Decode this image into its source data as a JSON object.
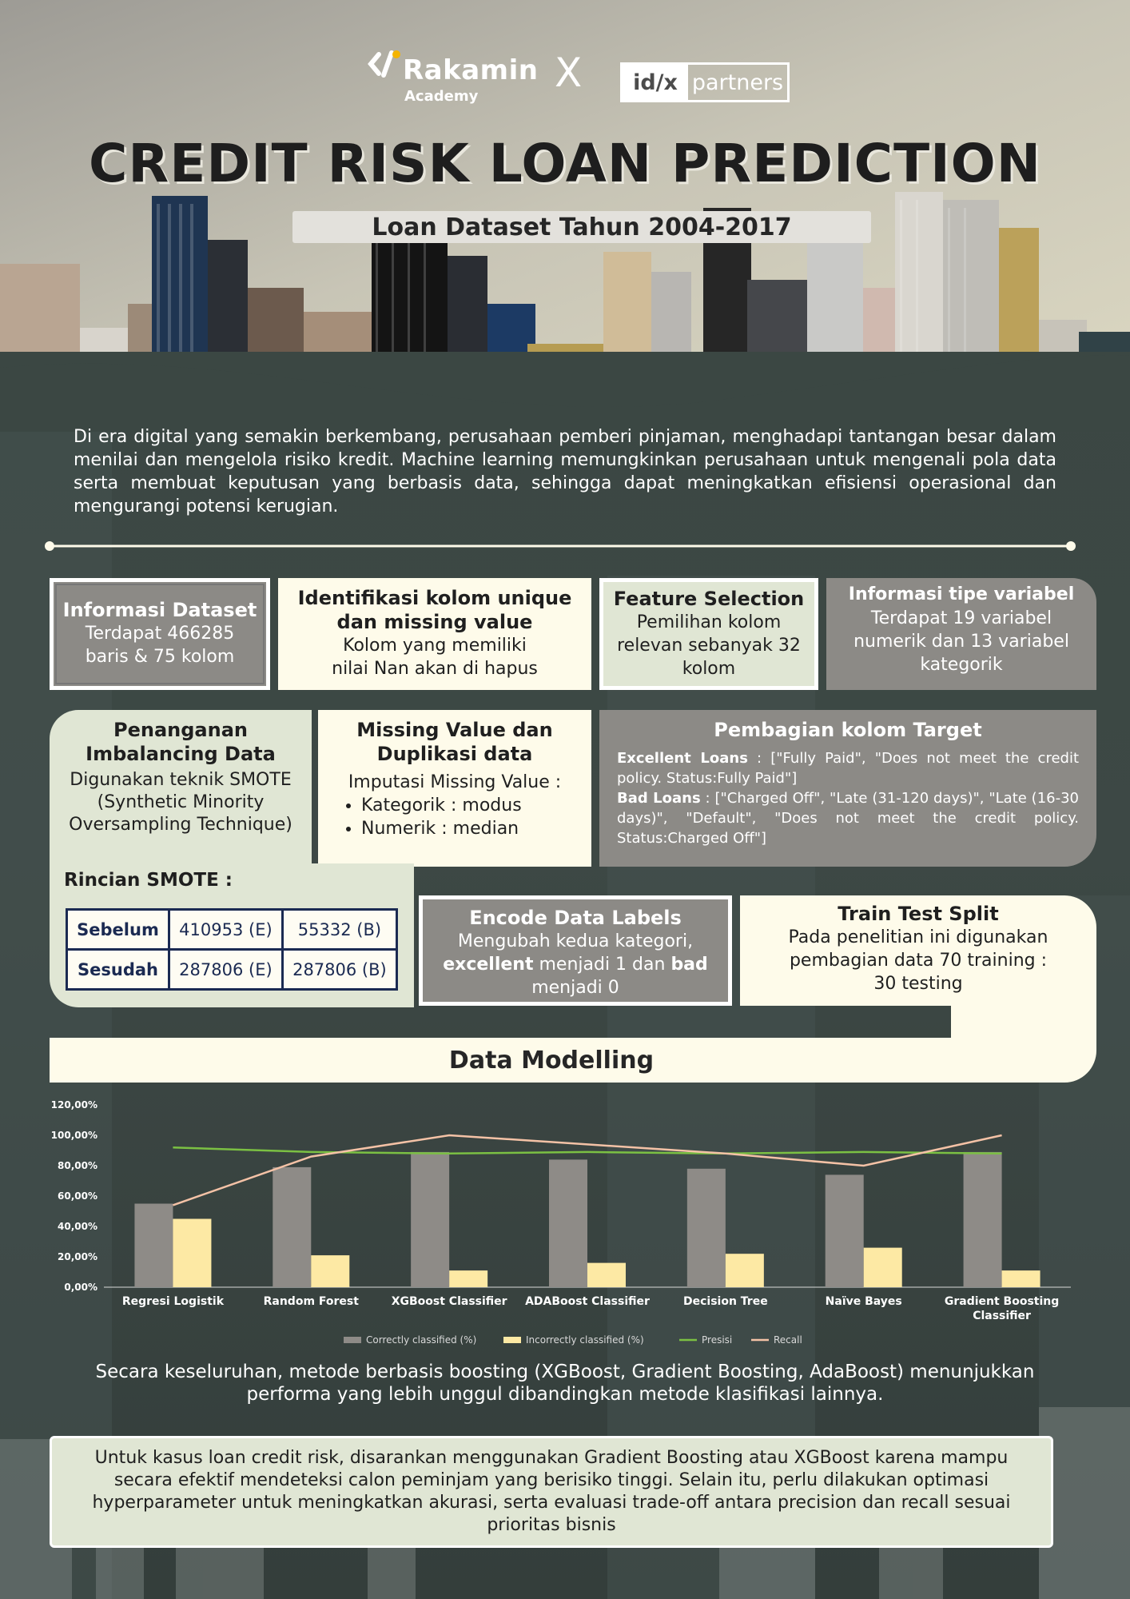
{
  "logos": {
    "rakamin_name": "Rakamin",
    "rakamin_sub": "Academy",
    "x_mark": "X",
    "idx_left": "id/x",
    "idx_right": "partners"
  },
  "title": "CREDIT RISK LOAN PREDICTION",
  "subtitle": "Loan Dataset Tahun 2004-2017",
  "intro": "Di era digital yang semakin berkembang, perusahaan pemberi pinjaman,  menghadapi tantangan besar dalam menilai dan mengelola risiko kredit. Machine learning memungkinkan perusahaan untuk mengenali pola data serta membuat keputusan yang berbasis data, sehingga dapat meningkatkan efisiensi operasional dan mengurangi potensi kerugian.",
  "cards": {
    "dataset": {
      "title": "Informasi Dataset",
      "body": "Terdapat 466285 baris & 75 kolom"
    },
    "unique": {
      "title": "Identifikasi kolom unique dan missing value",
      "body": "Kolom yang memiliki nilai Nan akan di hapus"
    },
    "feature": {
      "title": "Feature Selection",
      "body": "Pemilihan kolom relevan sebanyak 32 kolom"
    },
    "tipe": {
      "title": "Informasi tipe variabel",
      "body": "Terdapat 19 variabel numerik dan 13 variabel kategorik"
    },
    "imbalance": {
      "title": "Penanganan Imbalancing Data",
      "body": "Digunakan teknik SMOTE (Synthetic Minority Oversampling Technique)"
    },
    "missing": {
      "title": "Missing Value dan Duplikasi data",
      "body": "Imputasi Missing Value :",
      "items": [
        "Kategorik : modus",
        "Numerik : median"
      ]
    },
    "target": {
      "title": "Pembagian kolom Target",
      "excellent_label": "Excellent Loans",
      "excellent_text": " : [\"Fully Paid\", \"Does not meet the credit policy. Status:Fully Paid\"]",
      "bad_label": "Bad Loans",
      "bad_text": " : [\"Charged Off\", \"Late (31-120 days)\", \"Late (16-30 days)\", \"Default\", \"Does not meet the credit policy. Status:Charged Off\"]"
    },
    "encode": {
      "title": "Encode Data Labels",
      "body_1": "Mengubah kedua kategori,",
      "kw_1": "excellent",
      "body_2": " menjadi 1 dan ",
      "kw_2": "bad",
      "body_3": "menjadi 0"
    },
    "split": {
      "title": "Train Test Split",
      "body": "Pada penelitian ini digunakan pembagian data 70 training : 30 testing"
    }
  },
  "smote": {
    "title": "Rincian SMOTE :",
    "rows": [
      {
        "label": "Sebelum",
        "e": "410953 (E)",
        "b": "55332 (B)"
      },
      {
        "label": "Sesudah",
        "e": "287806 (E)",
        "b": "287806 (B)"
      }
    ]
  },
  "modelling_title": "Data Modelling",
  "chart_data": {
    "type": "bar",
    "categories": [
      "Regresi Logistik",
      "Random Forest",
      "XGBoost Classifier",
      "ADABoost Classifier",
      "Decision Tree",
      "Naïve Bayes",
      "Gradient Boosting Classifier"
    ],
    "y_ticks": [
      "0,00%",
      "20,00%",
      "40,00%",
      "60,00%",
      "80,00%",
      "100,00%",
      "120,00%"
    ],
    "ylim": [
      0,
      120
    ],
    "series": [
      {
        "name": "Correctly classified (%)",
        "kind": "bar",
        "color": "#8e8b87",
        "values": [
          55,
          79,
          89,
          84,
          78,
          74,
          89
        ]
      },
      {
        "name": "Incorrectly classified (%)",
        "kind": "bar",
        "color": "#fde9a4",
        "values": [
          45,
          21,
          11,
          16,
          22,
          26,
          11
        ]
      },
      {
        "name": "Presisi",
        "kind": "line",
        "color": "#7bc043",
        "values": [
          92,
          89,
          88,
          89,
          88,
          89,
          88
        ]
      },
      {
        "name": "Recall",
        "kind": "line",
        "color": "#f4c2a6",
        "values": [
          54,
          86,
          100,
          94,
          88,
          80,
          100
        ]
      }
    ],
    "legend_position": "bottom"
  },
  "conclusion": "Secara keseluruhan, metode berbasis boosting (XGBoost, Gradient Boosting, AdaBoost) menunjukkan performa yang lebih unggul dibandingkan metode klasifikasi lainnya.",
  "recommendation": "Untuk kasus loan credit risk, disarankan menggunakan Gradient Boosting atau XGBoost karena mampu secara efektif mendeteksi calon peminjam yang berisiko tinggi. Selain itu, perlu dilakukan optimasi hyperparameter untuk meningkatkan akurasi, serta evaluasi trade-off antara precision dan recall sesuai prioritas bisnis",
  "colors": {
    "grey_card": "#8c8a86",
    "cream_card": "#fefbea",
    "mint_card": "#e0e6d4",
    "background": "#3a4541",
    "title_text": "#1e1e1e"
  }
}
